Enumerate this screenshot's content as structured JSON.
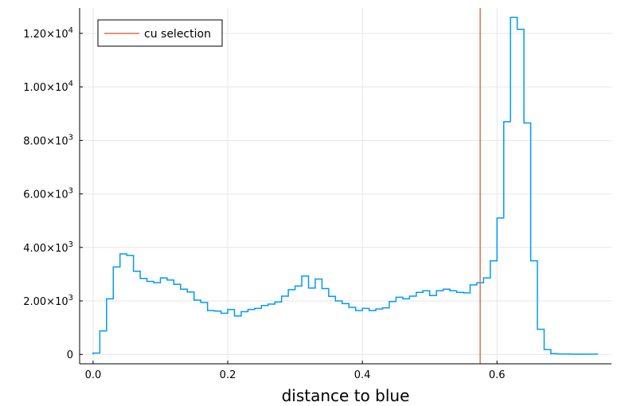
{
  "chart_data": {
    "type": "histogram",
    "title": "",
    "xlabel": "distance to blue",
    "ylabel": "",
    "xlim": [
      -0.02,
      0.77
    ],
    "ylim": [
      -350,
      12950
    ],
    "grid": true,
    "legend_placement": "top-left",
    "x_ticks": [
      {
        "value": 0.0,
        "label": "0.0"
      },
      {
        "value": 0.2,
        "label": "0.2"
      },
      {
        "value": 0.4,
        "label": "0.4"
      },
      {
        "value": 0.6,
        "label": "0.6"
      }
    ],
    "y_ticks": [
      {
        "value": 0,
        "label": "0",
        "exp": ""
      },
      {
        "value": 2000,
        "label": "2.00×10",
        "exp": "3"
      },
      {
        "value": 4000,
        "label": "4.00×10",
        "exp": "3"
      },
      {
        "value": 6000,
        "label": "6.00×10",
        "exp": "3"
      },
      {
        "value": 8000,
        "label": "8.00×10",
        "exp": "3"
      },
      {
        "value": 10000,
        "label": "1.00×10",
        "exp": "4"
      },
      {
        "value": 12000,
        "label": "1.20×10",
        "exp": "4"
      }
    ],
    "bin_start": 0.0,
    "bin_width": 0.01,
    "series": [
      {
        "name": "",
        "color": "#009AFA",
        "values": [
          50,
          880,
          2080,
          3270,
          3760,
          3700,
          3110,
          2840,
          2730,
          2680,
          2860,
          2780,
          2620,
          2440,
          2330,
          2030,
          1940,
          1640,
          1620,
          1540,
          1680,
          1440,
          1600,
          1680,
          1720,
          1830,
          1880,
          1960,
          2180,
          2420,
          2560,
          2930,
          2480,
          2820,
          2460,
          2170,
          2000,
          1900,
          1760,
          1640,
          1720,
          1640,
          1700,
          1740,
          1980,
          2140,
          2080,
          2180,
          2320,
          2380,
          2200,
          2380,
          2440,
          2380,
          2320,
          2300,
          2600,
          2680,
          2860,
          3500,
          5100,
          8700,
          12600,
          12150,
          8650,
          3500,
          940,
          180,
          30,
          20,
          20,
          10,
          10,
          10,
          10
        ]
      },
      {
        "name": "cu selection",
        "type": "vline",
        "color": "#E26F46",
        "x": 0.575
      }
    ]
  }
}
